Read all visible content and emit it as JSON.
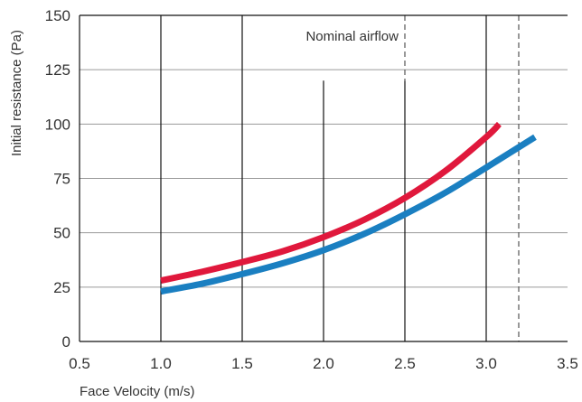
{
  "chart_data": {
    "type": "line",
    "title": "",
    "xlabel": "Face Velocity (m/s)",
    "ylabel": "Initial resistance (Pa)",
    "xlim": [
      0.5,
      3.5
    ],
    "ylim": [
      0,
      150
    ],
    "xticks": [
      "0.5",
      "1.0",
      "1.5",
      "2.0",
      "2.5",
      "3.0",
      "3.5"
    ],
    "xtick_values": [
      0.5,
      1.0,
      1.5,
      2.0,
      2.5,
      3.0,
      3.5
    ],
    "yticks": [
      "0",
      "25",
      "50",
      "75",
      "100",
      "125",
      "150"
    ],
    "ytick_values": [
      0,
      25,
      50,
      75,
      100,
      125,
      150
    ],
    "grid": "vertical lines at 1.0, 1.5, 2.0, 2.5, 3.0; horizontal lines at each y tick",
    "annotation": "Nominal airflow",
    "dashed_lines_x": [
      2.5,
      3.2
    ],
    "series": [
      {
        "color": "#e0183c",
        "x": [
          1.0,
          1.25,
          1.5,
          1.75,
          2.0,
          2.25,
          2.5,
          2.75,
          3.0,
          3.08
        ],
        "y": [
          28,
          32,
          36.5,
          41.5,
          48,
          56,
          66,
          78.5,
          94,
          100
        ]
      },
      {
        "color": "#1a7fc1",
        "x": [
          1.0,
          1.25,
          1.5,
          1.75,
          2.0,
          2.25,
          2.5,
          2.75,
          3.0,
          3.3
        ],
        "y": [
          23,
          26.5,
          31,
          36,
          42,
          49.5,
          58.5,
          68.5,
          80,
          94
        ]
      }
    ]
  }
}
